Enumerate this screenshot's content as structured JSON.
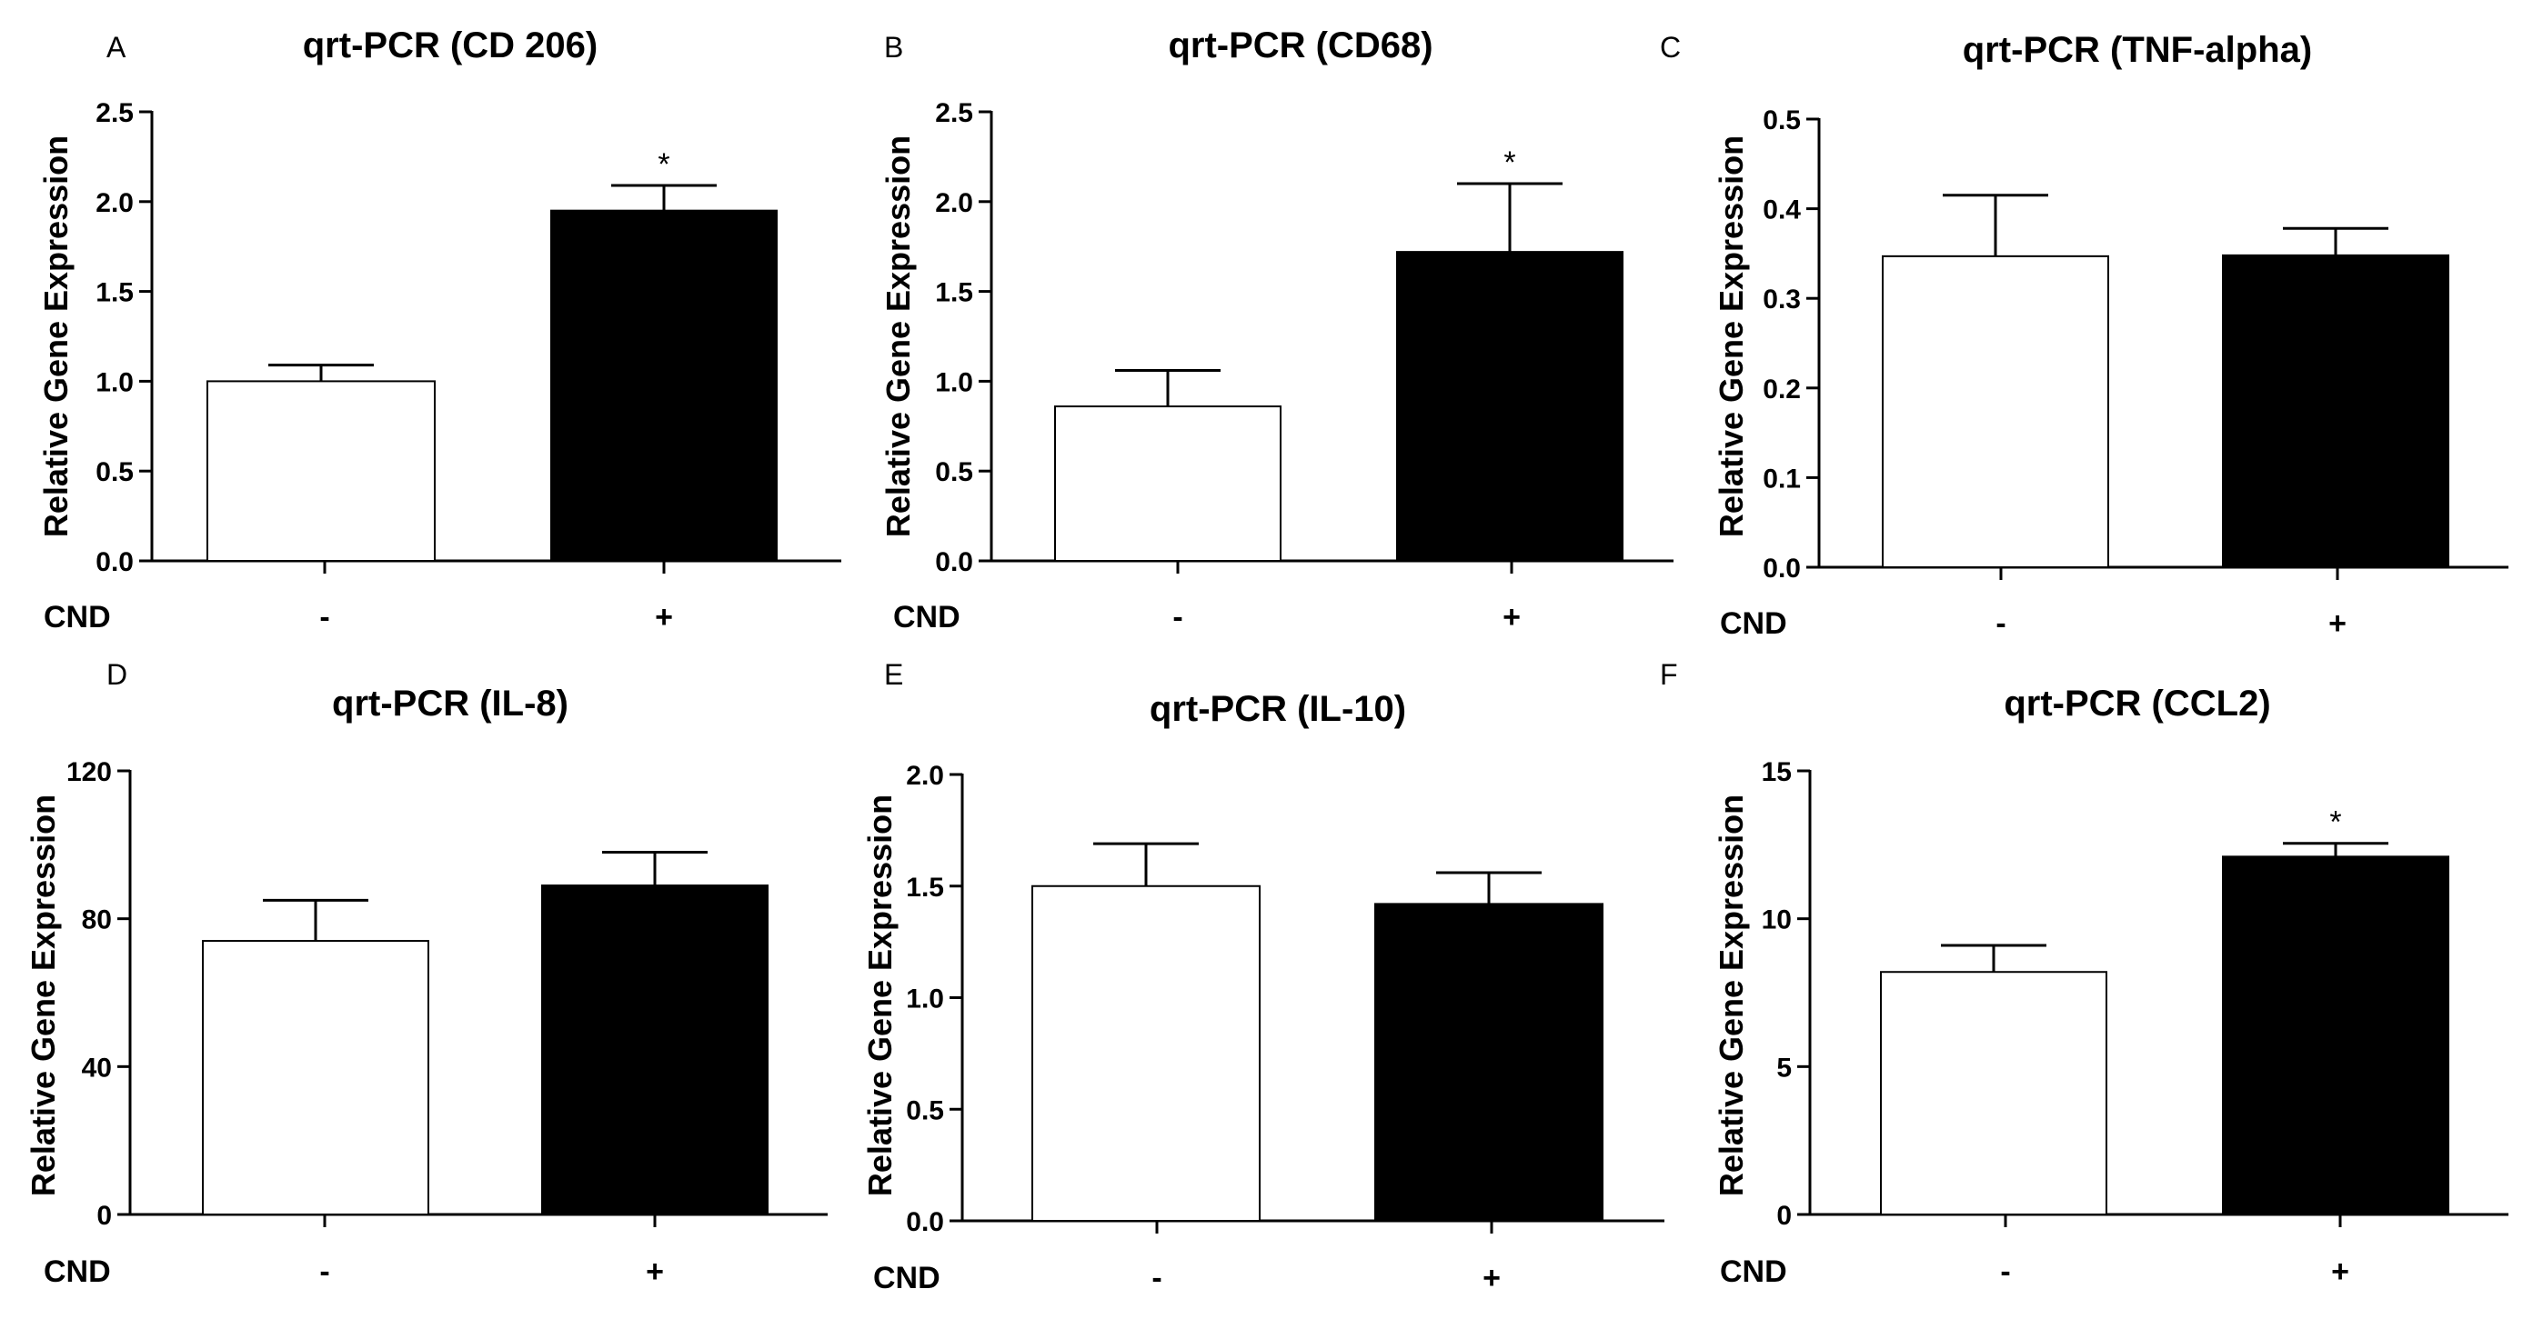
{
  "figure": {
    "background": "#ffffff",
    "axis_color": "#000000"
  },
  "chart_data": [
    {
      "type": "bar",
      "panel": "A",
      "title": "qrt-PCR (CD 206)",
      "ylabel": "Relative Gene Expression",
      "xlabel": "",
      "group_label": "CND",
      "categories": [
        "-",
        "+"
      ],
      "values": [
        1.0,
        1.95
      ],
      "errors": [
        0.09,
        0.14
      ],
      "bar_colors": [
        "#ffffff",
        "#000000"
      ],
      "significance": [
        "",
        "*"
      ],
      "ylim": [
        0,
        2.5
      ],
      "yticks": [
        0.0,
        0.5,
        1.0,
        1.5,
        2.0,
        2.5
      ],
      "ytick_labels": [
        "0.0",
        "0.5",
        "1.0",
        "1.5",
        "2.0",
        "2.5"
      ]
    },
    {
      "type": "bar",
      "panel": "B",
      "title": "qrt-PCR (CD68)",
      "ylabel": "Relative Gene Expression",
      "xlabel": "",
      "group_label": "CND",
      "categories": [
        "-",
        "+"
      ],
      "values": [
        0.86,
        1.72
      ],
      "errors": [
        0.2,
        0.38
      ],
      "bar_colors": [
        "#ffffff",
        "#000000"
      ],
      "significance": [
        "",
        "*"
      ],
      "ylim": [
        0,
        2.5
      ],
      "yticks": [
        0.0,
        0.5,
        1.0,
        1.5,
        2.0,
        2.5
      ],
      "ytick_labels": [
        "0.0",
        "0.5",
        "1.0",
        "1.5",
        "2.0",
        "2.5"
      ]
    },
    {
      "type": "bar",
      "panel": "C",
      "title": "qrt-PCR (TNF-alpha)",
      "ylabel": "Relative Gene Expression",
      "xlabel": "",
      "group_label": "CND",
      "categories": [
        "-",
        "+"
      ],
      "values": [
        0.347,
        0.348
      ],
      "errors": [
        0.068,
        0.03
      ],
      "bar_colors": [
        "#ffffff",
        "#000000"
      ],
      "significance": [
        "",
        ""
      ],
      "ylim": [
        0,
        0.5
      ],
      "yticks": [
        0.0,
        0.1,
        0.2,
        0.3,
        0.4,
        0.5
      ],
      "ytick_labels": [
        "0.0",
        "0.1",
        "0.2",
        "0.3",
        "0.4",
        "0.5"
      ]
    },
    {
      "type": "bar",
      "panel": "D",
      "title": "qrt-PCR (IL-8)",
      "ylabel": "Relative Gene Expression",
      "xlabel": "",
      "group_label": "CND",
      "categories": [
        "-",
        "+"
      ],
      "values": [
        74,
        89
      ],
      "errors": [
        11,
        9
      ],
      "bar_colors": [
        "#ffffff",
        "#000000"
      ],
      "significance": [
        "",
        ""
      ],
      "ylim": [
        0,
        120
      ],
      "yticks": [
        0,
        40,
        80,
        120
      ],
      "ytick_labels": [
        "0",
        "40",
        "80",
        "120"
      ]
    },
    {
      "type": "bar",
      "panel": "E",
      "title": "qrt-PCR (IL-10)",
      "ylabel": "Relative Gene Expression",
      "xlabel": "",
      "group_label": "CND",
      "categories": [
        "-",
        "+"
      ],
      "values": [
        1.5,
        1.42
      ],
      "errors": [
        0.19,
        0.14
      ],
      "bar_colors": [
        "#ffffff",
        "#000000"
      ],
      "significance": [
        "",
        ""
      ],
      "ylim": [
        0,
        2.0
      ],
      "yticks": [
        0.0,
        0.5,
        1.0,
        1.5,
        2.0
      ],
      "ytick_labels": [
        "0.0",
        "0.5",
        "1.0",
        "1.5",
        "2.0"
      ]
    },
    {
      "type": "bar",
      "panel": "F",
      "title": "qrt-PCR (CCL2)",
      "ylabel": "Relative Gene Expression",
      "xlabel": "",
      "group_label": "CND",
      "categories": [
        "-",
        "+"
      ],
      "values": [
        8.2,
        12.1
      ],
      "errors": [
        0.9,
        0.45
      ],
      "bar_colors": [
        "#ffffff",
        "#000000"
      ],
      "significance": [
        "",
        "*"
      ],
      "ylim": [
        0,
        15
      ],
      "yticks": [
        0,
        5,
        10,
        15
      ],
      "ytick_labels": [
        "0",
        "5",
        "10",
        "15"
      ]
    }
  ]
}
